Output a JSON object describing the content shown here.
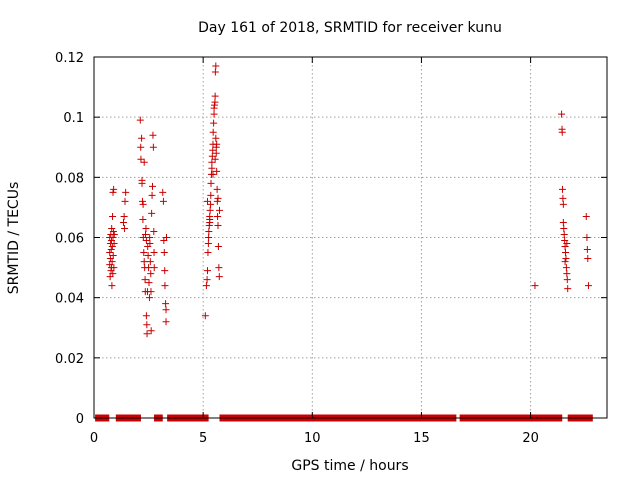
{
  "chart_data": {
    "type": "scatter",
    "title": "Day 161 of 2018, SRMTID for receiver kunu",
    "xlabel": "GPS time / hours",
    "ylabel": "SRMTID / TECUs",
    "xlim": [
      0,
      23.5
    ],
    "ylim": [
      0,
      0.12
    ],
    "x_ticks": [
      0,
      5,
      10,
      15,
      20
    ],
    "x_tick_labels": [
      "0",
      "5",
      "10",
      "15",
      "20"
    ],
    "y_ticks": [
      0,
      0.02,
      0.04,
      0.06,
      0.08,
      0.1,
      0.12
    ],
    "y_tick_labels": [
      "0",
      "0.02",
      "0.04",
      "0.06",
      "0.08",
      "0.1",
      "0.12"
    ],
    "grid": true,
    "marker": "plus",
    "color": "#cc0000",
    "zero_segments": [
      [
        0.05,
        0.7
      ],
      [
        1.0,
        2.15
      ],
      [
        2.75,
        3.15
      ],
      [
        3.35,
        5.25
      ],
      [
        5.75,
        16.6
      ],
      [
        16.75,
        21.45
      ],
      [
        21.7,
        22.85
      ]
    ],
    "series": [
      {
        "name": "SRMTID",
        "points": [
          [
            0.72,
            0.051
          ],
          [
            0.72,
            0.055
          ],
          [
            0.72,
            0.06
          ],
          [
            0.74,
            0.047
          ],
          [
            0.75,
            0.053
          ],
          [
            0.76,
            0.058
          ],
          [
            0.77,
            0.061
          ],
          [
            0.78,
            0.049
          ],
          [
            0.79,
            0.056
          ],
          [
            0.8,
            0.05
          ],
          [
            0.8,
            0.059
          ],
          [
            0.81,
            0.063
          ],
          [
            0.82,
            0.044
          ],
          [
            0.83,
            0.052
          ],
          [
            0.84,
            0.057
          ],
          [
            0.85,
            0.067
          ],
          [
            0.86,
            0.048
          ],
          [
            0.87,
            0.06
          ],
          [
            0.87,
            0.075
          ],
          [
            0.88,
            0.054
          ],
          [
            0.89,
            0.062
          ],
          [
            0.9,
            0.076
          ],
          [
            0.91,
            0.05
          ],
          [
            0.92,
            0.058
          ],
          [
            0.93,
            0.061
          ],
          [
            1.35,
            0.065
          ],
          [
            1.38,
            0.067
          ],
          [
            1.4,
            0.063
          ],
          [
            1.42,
            0.072
          ],
          [
            1.45,
            0.075
          ],
          [
            2.12,
            0.099
          ],
          [
            2.14,
            0.09
          ],
          [
            2.15,
            0.086
          ],
          [
            2.18,
            0.093
          ],
          [
            2.2,
            0.079
          ],
          [
            2.2,
            0.078
          ],
          [
            2.22,
            0.072
          ],
          [
            2.24,
            0.066
          ],
          [
            2.25,
            0.071
          ],
          [
            2.26,
            0.06
          ],
          [
            2.28,
            0.055
          ],
          [
            2.3,
            0.052
          ],
          [
            2.3,
            0.085
          ],
          [
            2.32,
            0.05
          ],
          [
            2.34,
            0.046
          ],
          [
            2.35,
            0.042
          ],
          [
            2.36,
            0.061
          ],
          [
            2.38,
            0.063
          ],
          [
            2.4,
            0.059
          ],
          [
            2.4,
            0.034
          ],
          [
            2.42,
            0.031
          ],
          [
            2.43,
            0.028
          ],
          [
            2.45,
            0.042
          ],
          [
            2.46,
            0.057
          ],
          [
            2.48,
            0.054
          ],
          [
            2.5,
            0.05
          ],
          [
            2.52,
            0.045
          ],
          [
            2.54,
            0.04
          ],
          [
            2.55,
            0.06
          ],
          [
            2.56,
            0.058
          ],
          [
            2.58,
            0.052
          ],
          [
            2.6,
            0.048
          ],
          [
            2.61,
            0.042
          ],
          [
            2.62,
            0.029
          ],
          [
            2.64,
            0.068
          ],
          [
            2.66,
            0.074
          ],
          [
            2.68,
            0.077
          ],
          [
            2.7,
            0.094
          ],
          [
            2.72,
            0.09
          ],
          [
            2.74,
            0.062
          ],
          [
            2.75,
            0.055
          ],
          [
            2.76,
            0.05
          ],
          [
            3.15,
            0.075
          ],
          [
            3.18,
            0.072
          ],
          [
            3.2,
            0.059
          ],
          [
            3.22,
            0.055
          ],
          [
            3.24,
            0.049
          ],
          [
            3.25,
            0.044
          ],
          [
            3.28,
            0.038
          ],
          [
            3.3,
            0.036
          ],
          [
            3.3,
            0.032
          ],
          [
            3.32,
            0.06
          ],
          [
            5.1,
            0.034
          ],
          [
            5.15,
            0.044
          ],
          [
            5.18,
            0.046
          ],
          [
            5.2,
            0.049
          ],
          [
            5.22,
            0.055
          ],
          [
            5.24,
            0.058
          ],
          [
            5.25,
            0.06
          ],
          [
            5.26,
            0.062
          ],
          [
            5.28,
            0.064
          ],
          [
            5.3,
            0.065
          ],
          [
            5.3,
            0.067
          ],
          [
            5.32,
            0.069
          ],
          [
            5.34,
            0.071
          ],
          [
            5.35,
            0.074
          ],
          [
            5.36,
            0.078
          ],
          [
            5.38,
            0.081
          ],
          [
            5.4,
            0.083
          ],
          [
            5.4,
            0.085
          ],
          [
            5.42,
            0.087
          ],
          [
            5.44,
            0.089
          ],
          [
            5.45,
            0.091
          ],
          [
            5.46,
            0.095
          ],
          [
            5.48,
            0.098
          ],
          [
            5.5,
            0.101
          ],
          [
            5.5,
            0.103
          ],
          [
            5.52,
            0.104
          ],
          [
            5.54,
            0.105
          ],
          [
            5.55,
            0.107
          ],
          [
            5.56,
            0.115
          ],
          [
            5.58,
            0.117
          ],
          [
            5.58,
            0.093
          ],
          [
            5.6,
            0.09
          ],
          [
            5.6,
            0.088
          ],
          [
            5.62,
            0.082
          ],
          [
            5.64,
            0.076
          ],
          [
            5.65,
            0.072
          ],
          [
            5.66,
            0.067
          ],
          [
            5.68,
            0.064
          ],
          [
            5.7,
            0.057
          ],
          [
            5.72,
            0.05
          ],
          [
            5.74,
            0.047
          ],
          [
            5.75,
            0.069
          ],
          [
            5.2,
            0.072
          ],
          [
            5.3,
            0.066
          ],
          [
            5.45,
            0.081
          ],
          [
            5.55,
            0.086
          ],
          [
            5.62,
            0.091
          ],
          [
            5.68,
            0.073
          ],
          [
            20.2,
            0.044
          ],
          [
            21.42,
            0.101
          ],
          [
            21.44,
            0.096
          ],
          [
            21.45,
            0.095
          ],
          [
            21.46,
            0.076
          ],
          [
            21.48,
            0.073
          ],
          [
            21.5,
            0.071
          ],
          [
            21.52,
            0.063
          ],
          [
            21.54,
            0.061
          ],
          [
            21.56,
            0.059
          ],
          [
            21.58,
            0.057
          ],
          [
            21.6,
            0.055
          ],
          [
            21.62,
            0.053
          ],
          [
            21.64,
            0.05
          ],
          [
            21.66,
            0.048
          ],
          [
            21.68,
            0.046
          ],
          [
            21.7,
            0.043
          ],
          [
            21.5,
            0.065
          ],
          [
            21.58,
            0.052
          ],
          [
            21.66,
            0.058
          ],
          [
            22.55,
            0.067
          ],
          [
            22.58,
            0.06
          ],
          [
            22.6,
            0.056
          ],
          [
            22.62,
            0.053
          ],
          [
            22.65,
            0.044
          ]
        ]
      }
    ]
  }
}
